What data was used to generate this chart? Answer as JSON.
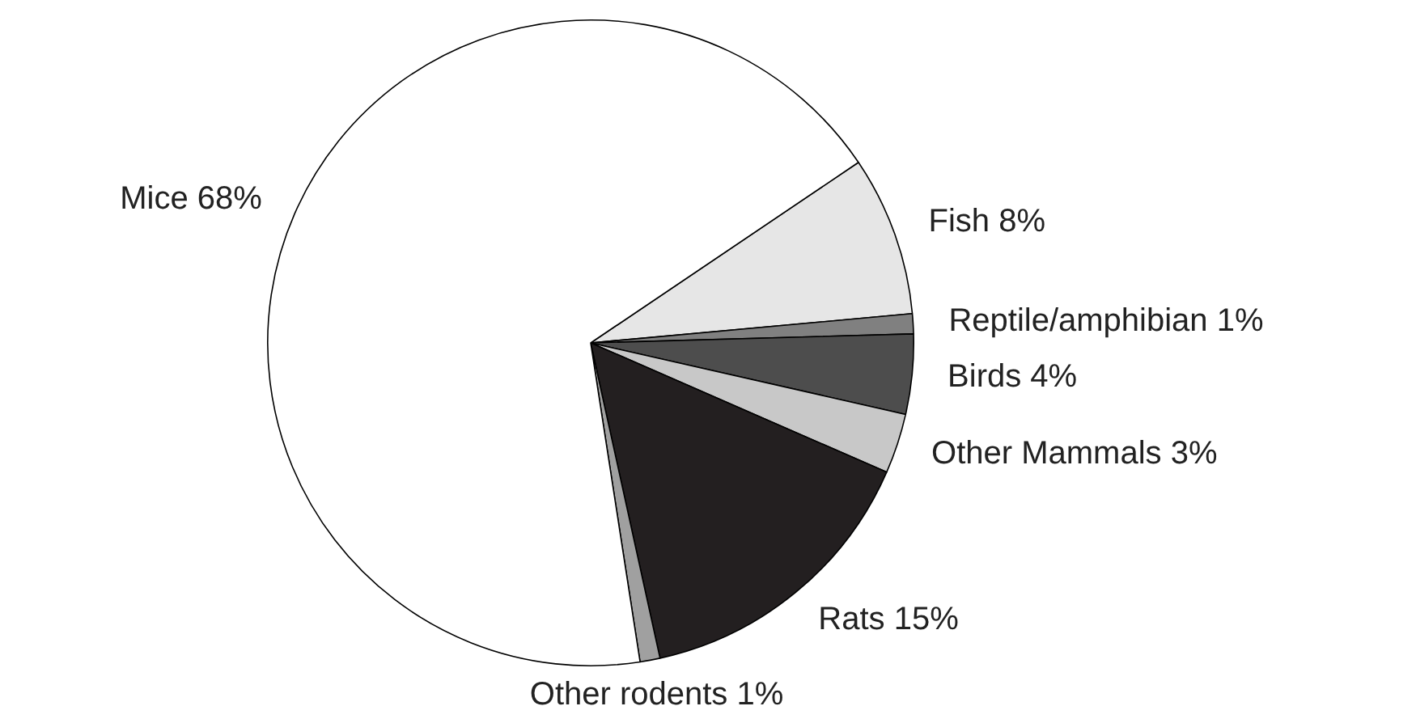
{
  "chart_data": {
    "type": "pie",
    "categories": [
      "Fish",
      "Reptile/amphibian",
      "Birds",
      "Other Mammals",
      "Rats",
      "Other rodents",
      "Mice"
    ],
    "values": [
      8,
      1,
      4,
      3,
      15,
      1,
      68
    ],
    "value_labels": [
      "8%",
      "1%",
      "4%",
      "3%",
      "15%",
      "1%",
      "68%"
    ],
    "colors": [
      "#e6e6e6",
      "#808080",
      "#4d4d4d",
      "#c8c8c8",
      "#231f20",
      "#a0a0a0",
      "#ffffff"
    ],
    "data_labels": true,
    "legend": false
  }
}
